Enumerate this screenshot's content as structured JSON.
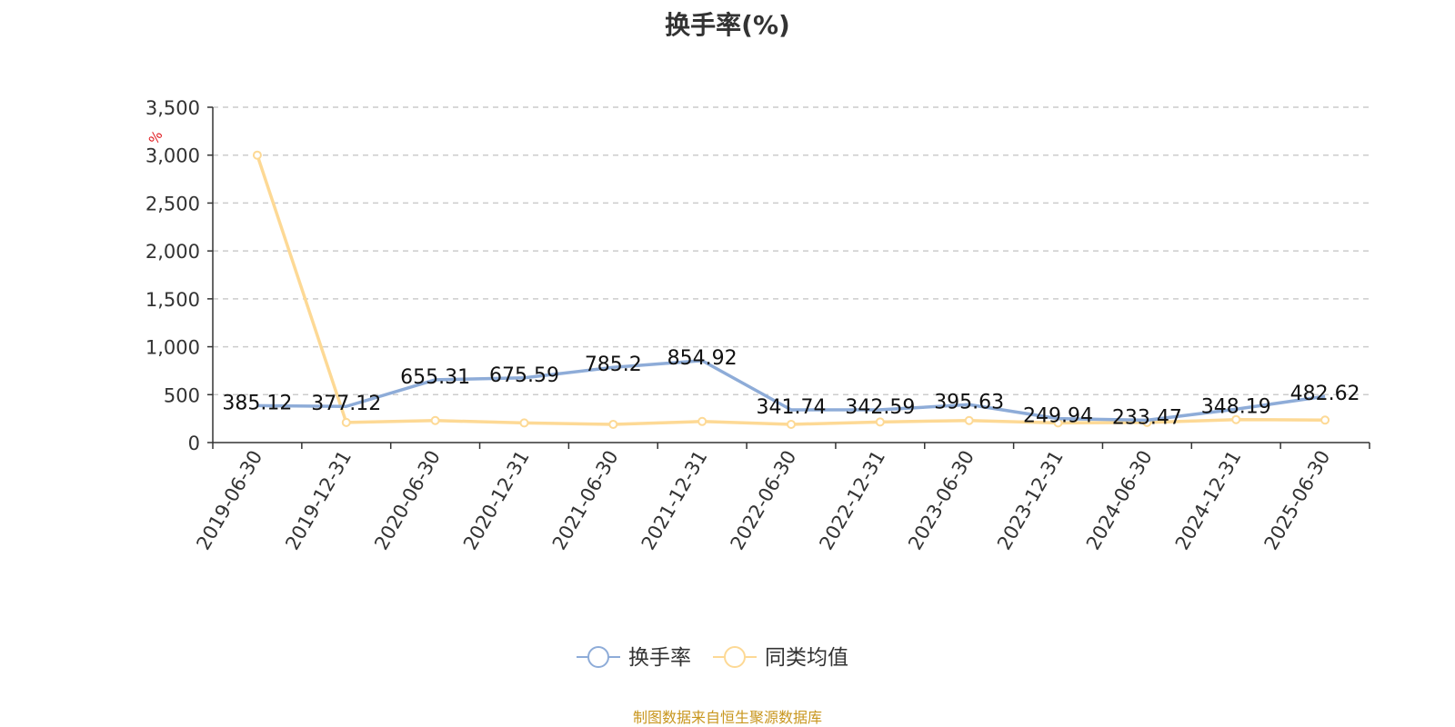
{
  "chart_data": {
    "type": "line",
    "title": "换手率(%)",
    "ylabel": "%",
    "categories": [
      "2019-06-30",
      "2019-12-31",
      "2020-06-30",
      "2020-12-31",
      "2021-06-30",
      "2021-12-31",
      "2022-06-30",
      "2022-12-31",
      "2023-06-30",
      "2023-12-31",
      "2024-06-30",
      "2024-12-31",
      "2025-06-30"
    ],
    "series": [
      {
        "name": "换手率",
        "color": "#8eacd8",
        "values": [
          385.12,
          377.12,
          655.31,
          675.59,
          785.2,
          854.92,
          341.74,
          342.59,
          395.63,
          249.94,
          233.47,
          348.19,
          482.62
        ],
        "labels": [
          "385.12",
          "377.12",
          "655.31",
          "675.59",
          "785.2",
          "854.92",
          "341.74",
          "342.59",
          "395.63",
          "249.94",
          "233.47",
          "348.19",
          "482.62"
        ]
      },
      {
        "name": "同类均值",
        "color": "#fdd995",
        "values": [
          3000,
          210,
          230,
          205,
          190,
          220,
          190,
          215,
          230,
          205,
          210,
          240,
          235
        ]
      }
    ],
    "yticks": [
      0,
      500,
      1000,
      1500,
      2000,
      2500,
      3000,
      3500
    ],
    "ytick_labels": [
      "0",
      "500",
      "1,000",
      "1,500",
      "2,000",
      "2,500",
      "3,000",
      "3,500"
    ],
    "ylim": [
      0,
      3500
    ],
    "grid": true,
    "legend": "bottom-center"
  },
  "source": {
    "text": "制图数据来自恒生聚源数据库",
    "color": "#c8961e"
  }
}
